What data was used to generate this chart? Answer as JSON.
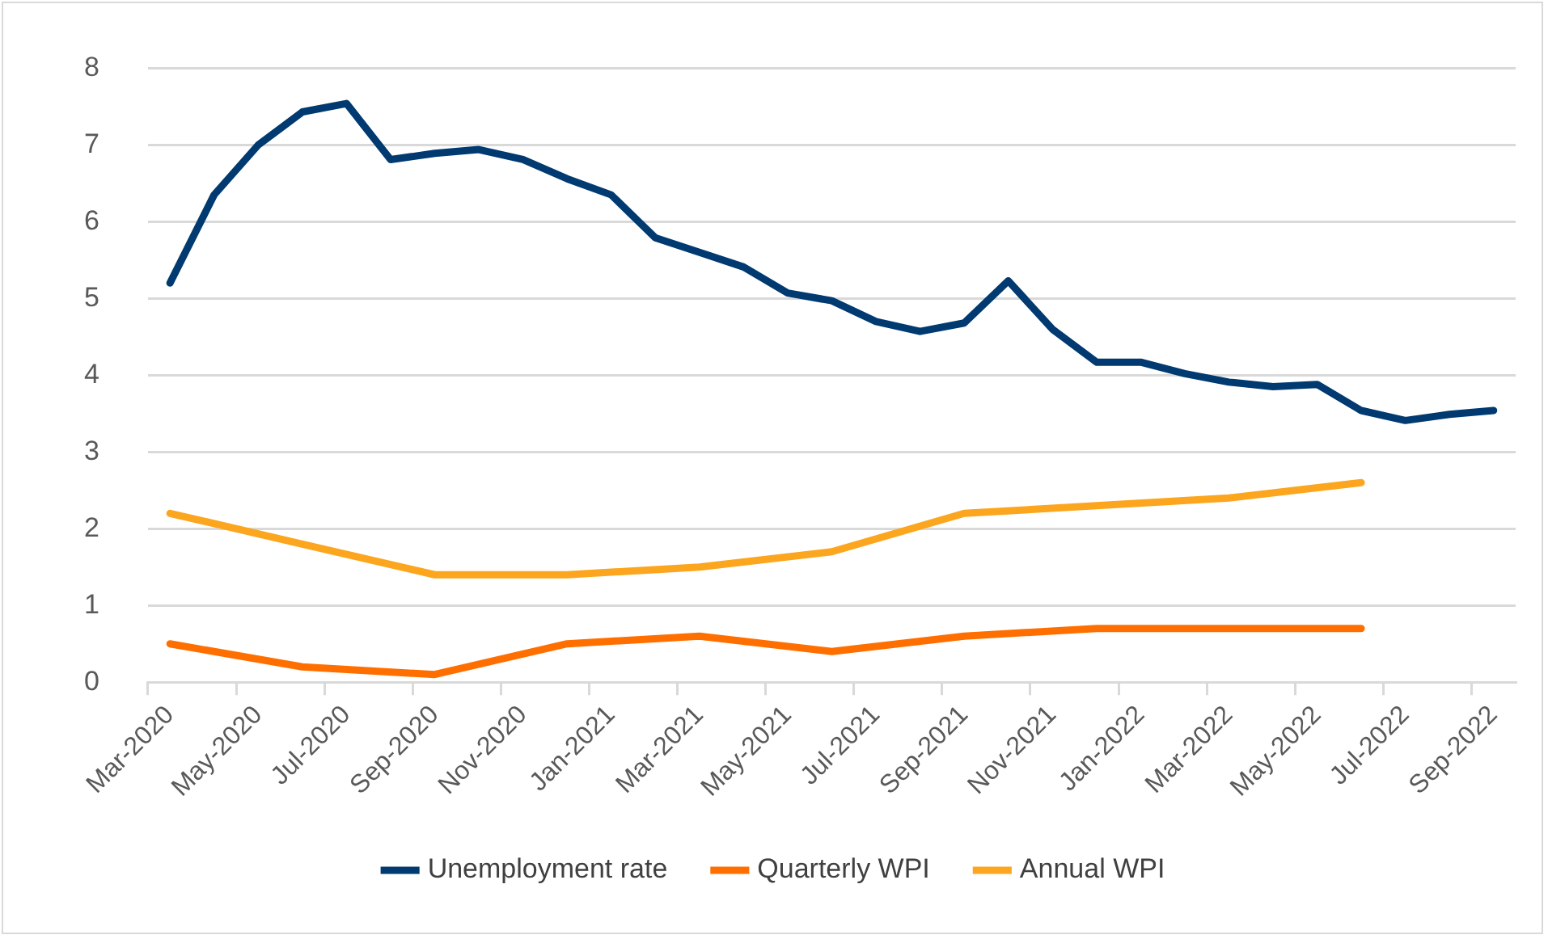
{
  "chart_data": {
    "type": "line",
    "categories": [
      "Mar-2020",
      null,
      "May-2020",
      null,
      "Jul-2020",
      null,
      "Sep-2020",
      null,
      "Nov-2020",
      null,
      "Jan-2021",
      null,
      "Mar-2021",
      null,
      "May-2021",
      null,
      "Jul-2021",
      null,
      "Sep-2021",
      null,
      "Nov-2021",
      null,
      "Jan-2022",
      null,
      "Mar-2022",
      null,
      "May-2022",
      null,
      "Jul-2022",
      null,
      "Sep-2022"
    ],
    "series": [
      {
        "name": "Unemployment rate",
        "color": "#003a70",
        "values": [
          5.2,
          6.35,
          7.0,
          7.43,
          7.54,
          6.81,
          6.89,
          6.94,
          6.81,
          6.56,
          6.35,
          5.79,
          5.6,
          5.41,
          5.07,
          4.97,
          4.7,
          4.57,
          4.68,
          5.23,
          4.6,
          4.17,
          4.17,
          4.02,
          3.91,
          3.85,
          3.88,
          3.54,
          3.41,
          3.49,
          3.54
        ]
      },
      {
        "name": "Quarterly WPI",
        "color": "#ff6f00",
        "values": [
          0.5,
          null,
          null,
          0.2,
          null,
          null,
          0.1,
          null,
          null,
          0.5,
          null,
          null,
          0.6,
          null,
          null,
          0.4,
          null,
          null,
          0.6,
          null,
          null,
          0.7,
          null,
          null,
          0.7,
          null,
          null,
          0.7,
          null,
          null,
          null
        ]
      },
      {
        "name": "Annual WPI",
        "color": "#fba61e",
        "values": [
          2.2,
          null,
          null,
          1.8,
          null,
          null,
          1.4,
          null,
          null,
          1.4,
          null,
          null,
          1.5,
          null,
          null,
          1.7,
          null,
          null,
          2.2,
          null,
          null,
          2.3,
          null,
          null,
          2.4,
          null,
          null,
          2.6,
          null,
          null,
          null
        ]
      }
    ],
    "ylim": [
      0,
      8
    ],
    "yticks": [
      0,
      1,
      2,
      3,
      4,
      5,
      6,
      7,
      8
    ],
    "grid": "y",
    "legend": "bottom",
    "marker": "none",
    "line_style": "solid"
  }
}
